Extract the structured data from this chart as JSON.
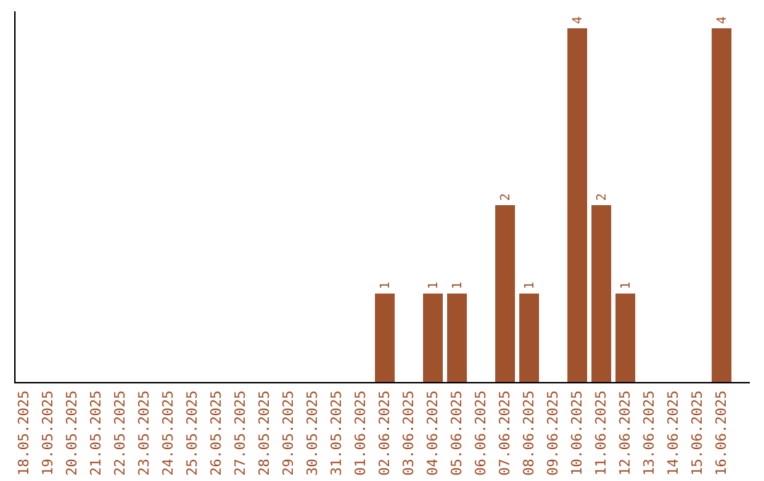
{
  "chart_data": {
    "type": "bar",
    "categories": [
      "18.05.2025",
      "19.05.2025",
      "20.05.2025",
      "21.05.2025",
      "22.05.2025",
      "23.05.2025",
      "24.05.2025",
      "25.05.2025",
      "26.05.2025",
      "27.05.2025",
      "28.05.2025",
      "29.05.2025",
      "30.05.2025",
      "31.05.2025",
      "01.06.2025",
      "02.06.2025",
      "03.06.2025",
      "04.06.2025",
      "05.06.2025",
      "06.06.2025",
      "07.06.2025",
      "08.06.2025",
      "09.06.2025",
      "10.06.2025",
      "11.06.2025",
      "12.06.2025",
      "13.06.2025",
      "14.06.2025",
      "15.06.2025",
      "16.06.2025"
    ],
    "values": [
      null,
      null,
      null,
      null,
      null,
      null,
      null,
      null,
      null,
      null,
      null,
      null,
      null,
      null,
      null,
      1,
      null,
      1,
      1,
      null,
      2,
      1,
      null,
      4,
      2,
      1,
      null,
      null,
      null,
      4
    ],
    "data_labels": true,
    "color": "#a0522d"
  }
}
